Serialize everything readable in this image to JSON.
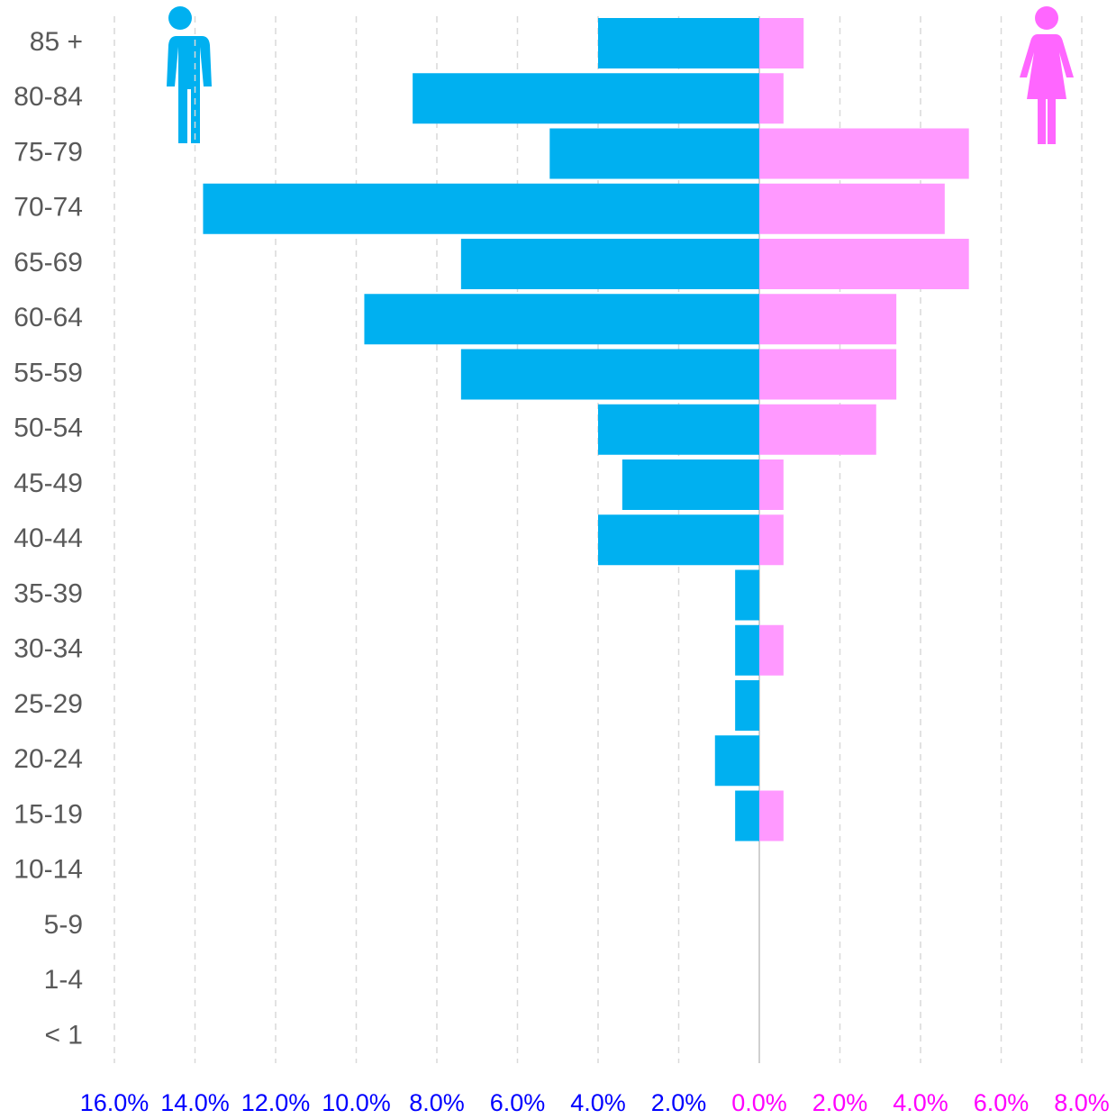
{
  "chart_data": {
    "type": "pyramid",
    "categories": [
      "85 +",
      "80-84",
      "75-79",
      "70-74",
      "65-69",
      "60-64",
      "55-59",
      "50-54",
      "45-49",
      "40-44",
      "35-39",
      "30-34",
      "25-29",
      "20-24",
      "15-19",
      "10-14",
      "5-9",
      "1-4",
      "< 1"
    ],
    "series": [
      {
        "color": "#00b0f0",
        "values": [
          -4.0,
          -8.6,
          -5.2,
          -13.8,
          -7.4,
          -9.8,
          -7.4,
          -4.0,
          -3.4,
          -4.0,
          -0.6,
          -0.6,
          -0.6,
          -1.1,
          -0.6,
          0,
          0,
          0,
          0
        ]
      },
      {
        "color": "#ff99ff",
        "values": [
          1.1,
          0.6,
          5.2,
          4.6,
          5.2,
          3.4,
          3.4,
          2.9,
          0.6,
          0.6,
          0,
          0.6,
          0,
          0,
          0.6,
          0,
          0,
          0,
          0
        ]
      }
    ],
    "xlim": [
      -16,
      8
    ],
    "xticks": [
      {
        "value": -16,
        "label": "16.0%",
        "color": "#0000ff"
      },
      {
        "value": -14,
        "label": "14.0%",
        "color": "#0000ff"
      },
      {
        "value": -12,
        "label": "12.0%",
        "color": "#0000ff"
      },
      {
        "value": -10,
        "label": "10.0%",
        "color": "#0000ff"
      },
      {
        "value": -8,
        "label": "8.0%",
        "color": "#0000ff"
      },
      {
        "value": -6,
        "label": "6.0%",
        "color": "#0000ff"
      },
      {
        "value": -4,
        "label": "4.0%",
        "color": "#0000ff"
      },
      {
        "value": -2,
        "label": "2.0%",
        "color": "#0000ff"
      },
      {
        "value": 0,
        "label": "0.0%",
        "color": "#ff00ff"
      },
      {
        "value": 2,
        "label": "2.0%",
        "color": "#ff00ff"
      },
      {
        "value": 4,
        "label": "4.0%",
        "color": "#ff00ff"
      },
      {
        "value": 6,
        "label": "6.0%",
        "color": "#ff00ff"
      },
      {
        "value": 8,
        "label": "8.0%",
        "color": "#ff00ff"
      }
    ],
    "grid": true
  }
}
